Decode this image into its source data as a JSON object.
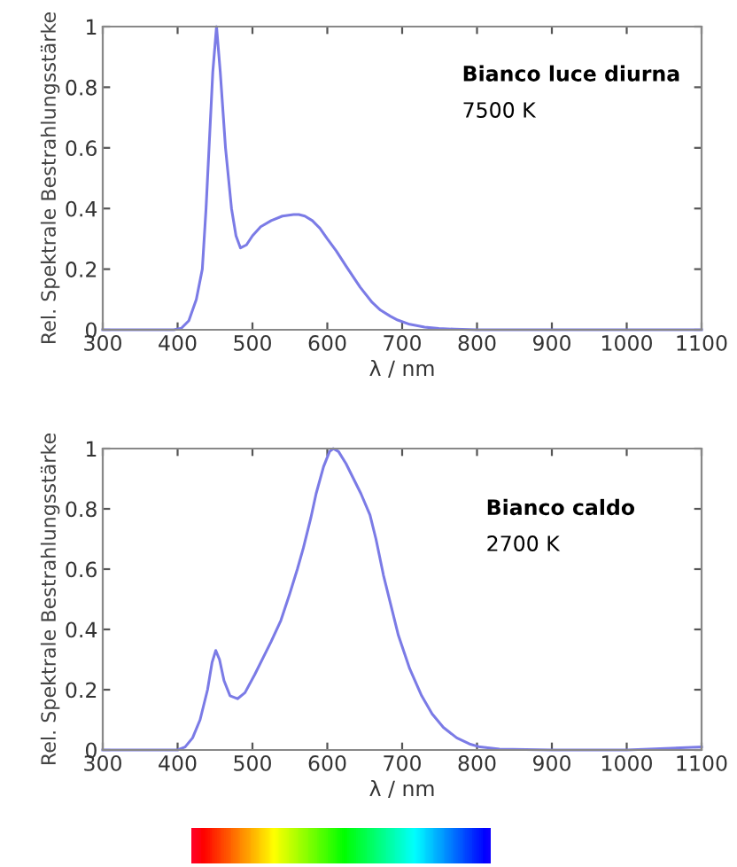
{
  "chart_data": [
    {
      "type": "line",
      "xlabel": "λ / nm",
      "ylabel": "Rel. Spektrale Bestrahlungsstärke",
      "annotations": [
        "Bianco luce diurna",
        "7500 K"
      ],
      "series": [
        {
          "color": "#7b7be6",
          "x": [
            300,
            350,
            395,
            405,
            415,
            425,
            433,
            438,
            442,
            447,
            452,
            457,
            464,
            472,
            478,
            484,
            492,
            500,
            511,
            525,
            540,
            555,
            562,
            570,
            580,
            590,
            600,
            612,
            625,
            644,
            660,
            671,
            684,
            694,
            710,
            730,
            749,
            770,
            800,
            900,
            1000,
            1100
          ],
          "values": [
            0,
            0,
            0,
            0.005,
            0.03,
            0.1,
            0.2,
            0.4,
            0.6,
            0.85,
            1.0,
            0.85,
            0.6,
            0.4,
            0.31,
            0.27,
            0.28,
            0.31,
            0.34,
            0.36,
            0.375,
            0.38,
            0.38,
            0.375,
            0.36,
            0.335,
            0.3,
            0.26,
            0.21,
            0.14,
            0.09,
            0.065,
            0.045,
            0.032,
            0.018,
            0.009,
            0.004,
            0.002,
            0,
            0,
            0,
            0
          ]
        }
      ],
      "xlim": [
        300,
        1100
      ],
      "ylim": [
        0,
        1
      ],
      "xticks": [
        300,
        400,
        500,
        600,
        700,
        800,
        900,
        1000,
        1100
      ],
      "yticks": [
        0,
        0.2,
        0.4,
        0.6,
        0.8,
        1
      ],
      "grid": false,
      "legend": false
    },
    {
      "type": "line",
      "xlabel": "λ / nm",
      "ylabel": "Rel. Spektrale Bestrahlungsstärke",
      "annotations": [
        "Bianco caldo",
        "2700 K"
      ],
      "series": [
        {
          "color": "#7b7be6",
          "x": [
            300,
            350,
            400,
            410,
            420,
            430,
            440,
            446,
            451,
            456,
            462,
            470,
            480,
            490,
            503,
            515,
            525,
            538,
            550,
            560,
            568,
            578,
            585,
            595,
            603,
            608,
            615,
            625,
            635,
            645,
            657,
            665,
            675,
            685,
            695,
            710,
            726,
            740,
            755,
            773,
            790,
            804,
            830,
            900,
            1000,
            1100
          ],
          "values": [
            0,
            0,
            0,
            0.01,
            0.04,
            0.1,
            0.2,
            0.29,
            0.33,
            0.3,
            0.23,
            0.18,
            0.17,
            0.19,
            0.25,
            0.31,
            0.36,
            0.43,
            0.52,
            0.6,
            0.67,
            0.77,
            0.85,
            0.94,
            0.99,
            1.0,
            0.99,
            0.95,
            0.9,
            0.85,
            0.78,
            0.7,
            0.58,
            0.48,
            0.38,
            0.27,
            0.18,
            0.12,
            0.075,
            0.04,
            0.02,
            0.01,
            0.003,
            0,
            0,
            0.01
          ]
        }
      ],
      "xlim": [
        300,
        1100
      ],
      "ylim": [
        0,
        1
      ],
      "xticks": [
        300,
        400,
        500,
        600,
        700,
        800,
        900,
        1000,
        1100
      ],
      "yticks": [
        0,
        0.2,
        0.4,
        0.6,
        0.8,
        1
      ],
      "grid": false,
      "legend": false
    }
  ]
}
